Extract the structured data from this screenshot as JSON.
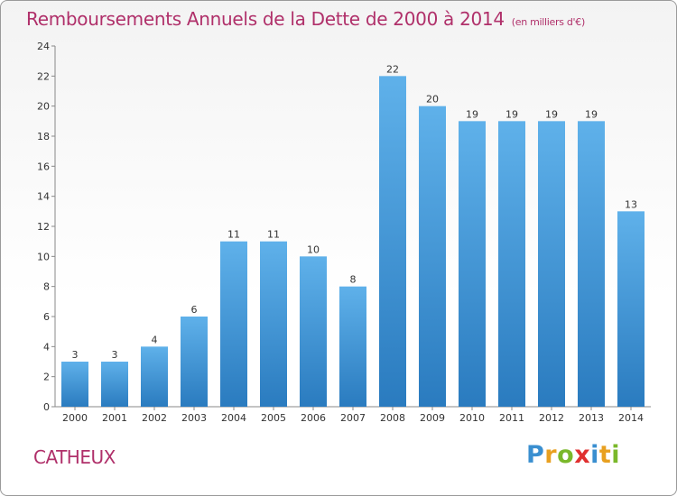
{
  "title": "Remboursements Annuels de la Dette de 2000 à 2014",
  "title_unit": "(en milliers d'€)",
  "commune": "CATHEUX",
  "logo": {
    "letters": [
      "P",
      "r",
      "o",
      "x",
      "i",
      "t",
      "i"
    ],
    "colors": [
      "#3a8fd0",
      "#e8a020",
      "#7ab82a",
      "#e03030",
      "#3a8fd0",
      "#e8a020",
      "#7ab82a"
    ]
  },
  "colors": {
    "bar_top": "#5fb1ea",
    "bar_bottom": "#2a7bbf",
    "title": "#b0306a"
  },
  "chart_data": {
    "type": "bar",
    "categories": [
      "2000",
      "2001",
      "2002",
      "2003",
      "2004",
      "2005",
      "2006",
      "2007",
      "2008",
      "2009",
      "2010",
      "2011",
      "2012",
      "2013",
      "2014"
    ],
    "values": [
      3,
      3,
      4,
      6,
      11,
      11,
      10,
      8,
      22,
      20,
      19,
      19,
      19,
      19,
      13
    ],
    "ylim": [
      0,
      24
    ],
    "yticks": [
      0,
      2,
      4,
      6,
      8,
      10,
      12,
      14,
      16,
      18,
      20,
      22,
      24
    ],
    "grid": false,
    "legend": "none"
  }
}
